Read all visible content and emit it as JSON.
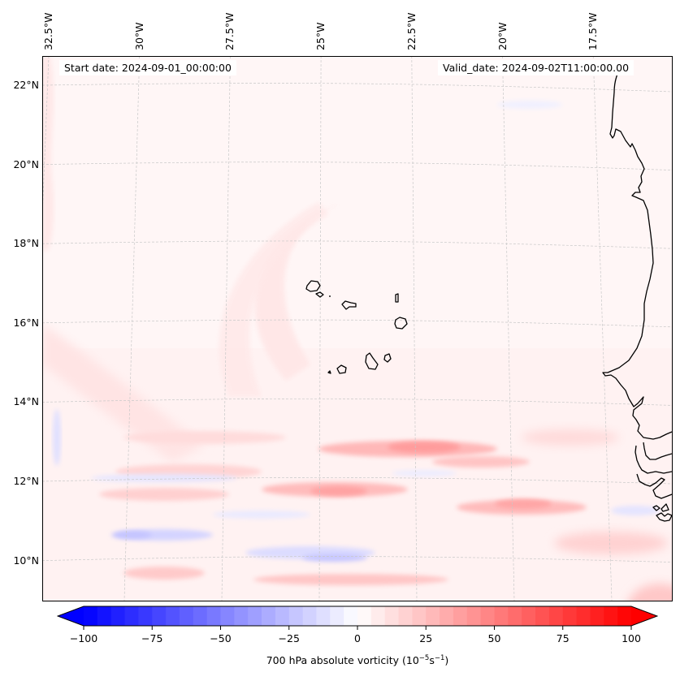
{
  "figure": {
    "annotations": {
      "start_date": "Start date: 2024-09-01_00:00:00",
      "valid_date": "Valid_date: 2024-09-02T11:00:00.00"
    }
  },
  "map": {
    "projection": "Lambert conformal (approx.)",
    "extent": {
      "lon_min": -33.0,
      "lon_max": -16.2,
      "lat_min": 8.9,
      "lat_max": 22.8
    },
    "lon_gridlines": [
      {
        "value": -32.5,
        "label": "32.5°W"
      },
      {
        "value": -30.0,
        "label": "30°W"
      },
      {
        "value": -27.5,
        "label": "27.5°W"
      },
      {
        "value": -25.0,
        "label": "25°W"
      },
      {
        "value": -22.5,
        "label": "22.5°W"
      },
      {
        "value": -20.0,
        "label": "20°W"
      },
      {
        "value": -17.5,
        "label": "17.5°W"
      }
    ],
    "lat_gridlines": [
      {
        "value": 22,
        "label": "22°N"
      },
      {
        "value": 20,
        "label": "20°N"
      },
      {
        "value": 18,
        "label": "18°N"
      },
      {
        "value": 16,
        "label": "16°N"
      },
      {
        "value": 14,
        "label": "14°N"
      },
      {
        "value": 12,
        "label": "12°N"
      },
      {
        "value": 10,
        "label": "10°N"
      }
    ],
    "features": [
      "coastline-west-africa",
      "cape-verde-islands",
      "bijagos-islands"
    ],
    "field": {
      "variable": "700 hPa absolute vorticity",
      "units": "10^-5 s^-1",
      "notable_regions": [
        {
          "description": "positive band",
          "lon": -22.5,
          "lat": 12.6,
          "approx_value": 35
        },
        {
          "description": "positive band",
          "lon": -24.5,
          "lat": 11.7,
          "approx_value": 30
        },
        {
          "description": "positive band",
          "lon": -19.5,
          "lat": 11.2,
          "approx_value": 30
        },
        {
          "description": "negative band",
          "lon": -24.0,
          "lat": 9.9,
          "approx_value": -20
        },
        {
          "description": "negative band",
          "lon": -29.0,
          "lat": 10.6,
          "approx_value": -20
        },
        {
          "description": "negative band",
          "lon": -31.0,
          "lat": 12.0,
          "approx_value": -12
        }
      ]
    }
  },
  "colorbar": {
    "label_main": "700 hPa absolute vorticity (10",
    "label_exp1": "−5",
    "label_mid": "s",
    "label_exp2": "−1",
    "label_end": ")",
    "min": -100,
    "max": 100,
    "step": 5,
    "extend": "both",
    "ticks": [
      {
        "value": -100,
        "label": "−100"
      },
      {
        "value": -75,
        "label": "−75"
      },
      {
        "value": -50,
        "label": "−50"
      },
      {
        "value": -25,
        "label": "−25"
      },
      {
        "value": 0,
        "label": "0"
      },
      {
        "value": 25,
        "label": "25"
      },
      {
        "value": 50,
        "label": "50"
      },
      {
        "value": 75,
        "label": "75"
      },
      {
        "value": 100,
        "label": "100"
      }
    ],
    "colors": {
      "low": "#0000ff",
      "mid": "#ffffff",
      "high": "#ff0000"
    }
  }
}
